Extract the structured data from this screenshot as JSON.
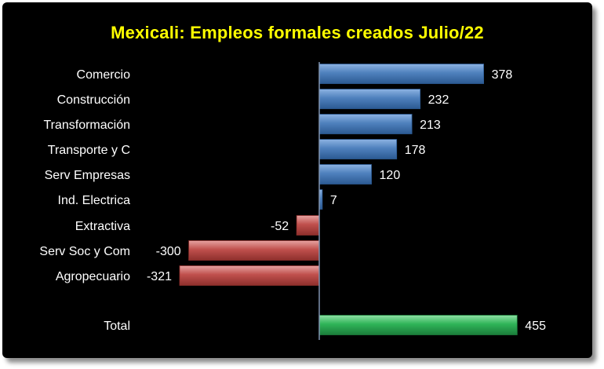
{
  "chart_data": {
    "type": "bar",
    "orientation": "horizontal",
    "title": "Mexicali: Empleos formales creados Julio/22",
    "categories": [
      "Comercio",
      "Construcción",
      "Transformación",
      "Transporte y C",
      "Serv Empresas",
      "Ind. Electrica",
      "Extractiva",
      "Serv Soc y Com",
      "Agropecuario",
      "Total"
    ],
    "values": [
      378,
      232,
      213,
      178,
      120,
      7,
      -52,
      -300,
      -321,
      455
    ],
    "xlim": [
      -321,
      455
    ],
    "grid": false,
    "legend": "none",
    "colors": {
      "positive": "#4f81bd",
      "negative": "#c0504d",
      "total": "#2fb458",
      "background": "#000000",
      "title": "#ffff00",
      "labels": "#ffffff",
      "axis": "#7f93b0"
    }
  }
}
